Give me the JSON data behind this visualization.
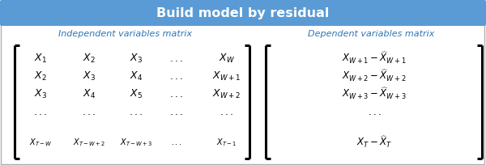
{
  "title": "Build model by residual",
  "title_bg": "#5b9bd5",
  "title_color": "#ffffff",
  "left_header": "Independent variables matrix",
  "right_header": "Dependent variables matrix",
  "header_color": "#2e74b5",
  "bg_color": "#ffffff",
  "border_color": "#b0b0b0",
  "figsize": [
    6.0,
    2.04
  ],
  "dpi": 100
}
